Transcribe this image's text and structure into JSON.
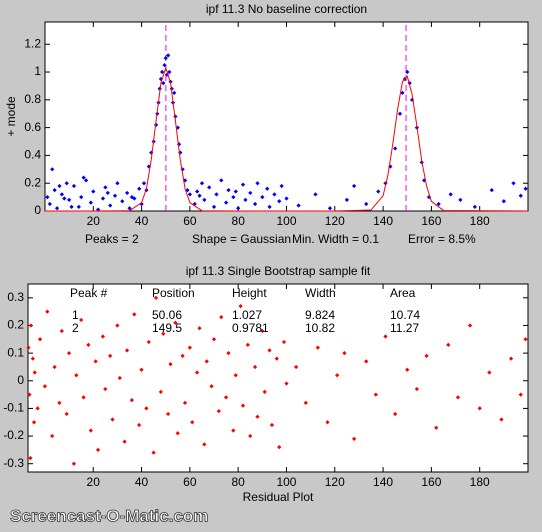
{
  "chart_data": [
    {
      "type": "scatter",
      "title": "ipf 11.3   No baseline correction",
      "ylabel": "+ mode",
      "xlim": [
        0,
        200
      ],
      "ylim": [
        0,
        1.36
      ],
      "xticks": [
        20,
        40,
        60,
        80,
        100,
        120,
        140,
        160,
        180
      ],
      "yticks": [
        0,
        0.2,
        0.4,
        0.6,
        0.8,
        1,
        1.2
      ],
      "annotations": [
        "Peaks = 2",
        "Shape = Gaussian",
        "Min. Width = 0.1",
        "Error = 8.5%"
      ],
      "peak_line_color": "#ff00ff",
      "series": [
        {
          "color": "#0000ff",
          "x": [
            2,
            4,
            5,
            7,
            9,
            10,
            12,
            14,
            15,
            17,
            19,
            20,
            22,
            24,
            25,
            27,
            29,
            30,
            32,
            34,
            35,
            37,
            39,
            40,
            1,
            6,
            11,
            16,
            3,
            8,
            26,
            36,
            41,
            42,
            43,
            44,
            45,
            46,
            46.5,
            47,
            47.5,
            48,
            48.5,
            49,
            49.5,
            50,
            50.5,
            51,
            51.5,
            52,
            52.5,
            53,
            53.5,
            54,
            55,
            55.5,
            56,
            57,
            58,
            59,
            60,
            62,
            63,
            65,
            66,
            68,
            70,
            71,
            73,
            75,
            76,
            78,
            80,
            82,
            83,
            85,
            87,
            88,
            90,
            92,
            93,
            95,
            97,
            98,
            100,
            64,
            79,
            105,
            112,
            118,
            125,
            128,
            133,
            138,
            141,
            143,
            145,
            147,
            148,
            149,
            150,
            151,
            152,
            154,
            156,
            157,
            159,
            163,
            168,
            172,
            178,
            185,
            190,
            194,
            197,
            199
          ],
          "values": [
            0.05,
            0.15,
            0.02,
            0.12,
            0.2,
            0.08,
            0.18,
            0.03,
            0.1,
            0.22,
            0.06,
            0.14,
            0.01,
            0.09,
            0.17,
            0.04,
            0.11,
            0.2,
            0.07,
            0.13,
            0.02,
            0.09,
            0.16,
            0.05,
            0.1,
            0.18,
            0.03,
            0.24,
            0.3,
            0.09,
            0.13,
            0.1,
            0.2,
            0.15,
            0.32,
            0.42,
            0.5,
            0.62,
            0.7,
            0.78,
            0.88,
            0.95,
            1.0,
            0.92,
            1.05,
            1.1,
            0.98,
            1.12,
            1.0,
            0.93,
            0.88,
            0.78,
            0.85,
            0.68,
            0.6,
            0.48,
            0.42,
            0.3,
            0.22,
            0.15,
            0.12,
            0.05,
            0.14,
            0.2,
            0.08,
            0.17,
            0.03,
            0.12,
            0.22,
            0.06,
            0.15,
            0.1,
            0.02,
            0.19,
            0.08,
            0.13,
            0.05,
            0.2,
            0.1,
            0.16,
            0.03,
            0.12,
            0.07,
            0.18,
            0.09,
            0.11,
            0.14,
            0.04,
            0.12,
            0.02,
            0.08,
            0.18,
            0.05,
            0.14,
            0.2,
            0.32,
            0.45,
            0.7,
            0.85,
            0.95,
            1.0,
            0.92,
            0.8,
            0.6,
            0.35,
            0.22,
            0.1,
            0.05,
            0.12,
            0.08,
            0.03,
            0.15,
            0.07,
            0.2,
            0.11,
            0.16
          ]
        },
        {
          "type": "line",
          "color": "#ff0000",
          "x": [
            0,
            20,
            35,
            40,
            42,
            44,
            46,
            48,
            50,
            52,
            54,
            56,
            58,
            60,
            65,
            80,
            120,
            135,
            140,
            142,
            144,
            146,
            148,
            150,
            152,
            154,
            156,
            158,
            160,
            165,
            200
          ],
          "values": [
            0,
            0,
            0.002,
            0.06,
            0.16,
            0.37,
            0.65,
            0.92,
            1.03,
            0.92,
            0.65,
            0.37,
            0.16,
            0.06,
            0.002,
            0,
            0,
            0.007,
            0.11,
            0.26,
            0.48,
            0.73,
            0.93,
            0.97,
            0.84,
            0.61,
            0.36,
            0.18,
            0.07,
            0.004,
            0
          ]
        }
      ]
    },
    {
      "type": "scatter",
      "title": "ipf 11.3  Single Bootstrap sample fit",
      "xlabel": "Residual Plot",
      "xlim": [
        -7,
        200
      ],
      "ylim": [
        -0.33,
        0.35
      ],
      "xticks": [
        20,
        40,
        60,
        80,
        100,
        120,
        140,
        160,
        180
      ],
      "yticks": [
        -0.3,
        -0.2,
        -0.1,
        0,
        0.1,
        0.2,
        0.3
      ],
      "table": {
        "headers": [
          "Peak #",
          "Position",
          "Height",
          "Width",
          "Area"
        ],
        "rows": [
          [
            1,
            50.06,
            1.027,
            9.824,
            10.74
          ],
          [
            2,
            149.5,
            0.9781,
            10.82,
            11.27
          ]
        ]
      },
      "series": [
        {
          "color": "#ff0000",
          "x": [
            -6.8,
            -6.4,
            -5.8,
            -4.5,
            -4.2,
            -6,
            -5,
            -3,
            -2,
            0,
            1,
            3,
            4,
            6,
            7,
            9,
            10,
            12,
            13,
            15,
            16,
            18,
            19,
            21,
            22,
            24,
            25,
            27,
            28,
            30,
            31,
            33,
            34,
            36,
            37,
            39,
            40,
            42,
            43,
            45,
            46,
            48,
            49,
            51,
            52,
            54,
            55,
            57,
            58,
            60,
            61,
            63,
            64,
            66,
            67,
            69,
            70,
            72,
            73,
            75,
            76,
            78,
            79,
            81,
            82,
            84,
            85,
            87,
            88,
            90,
            91,
            93,
            94,
            96,
            97,
            99,
            100,
            104,
            108,
            113,
            117,
            121,
            124,
            128,
            133,
            137,
            141,
            145,
            150,
            154,
            158,
            162,
            167,
            171,
            176,
            180,
            184,
            189,
            193,
            197,
            199
          ],
          "values": [
            0.12,
            -0.05,
            0.2,
            -0.15,
            0.03,
            -0.28,
            0.08,
            -0.1,
            0.15,
            -0.02,
            0.25,
            -0.2,
            0.05,
            -0.08,
            0.18,
            -0.12,
            0.1,
            -0.3,
            0.02,
            0.22,
            -0.06,
            0.13,
            -0.18,
            0.07,
            -0.25,
            0.16,
            -0.03,
            0.09,
            -0.14,
            0.2,
            0.01,
            -0.22,
            0.11,
            -0.07,
            0.24,
            -0.16,
            0.04,
            -0.1,
            0.14,
            -0.26,
            0.3,
            -0.04,
            0.17,
            -0.12,
            0.06,
            0.21,
            -0.19,
            0.09,
            -0.08,
            0.12,
            -0.15,
            0.03,
            0.19,
            -0.23,
            0.07,
            -0.02,
            0.15,
            -0.11,
            0.23,
            -0.06,
            0.1,
            -0.18,
            0.02,
            0.27,
            -0.09,
            0.13,
            -0.2,
            0.05,
            -0.13,
            0.18,
            -0.04,
            0.11,
            -0.16,
            0.08,
            -0.24,
            0.14,
            -0.01,
            0.05,
            -0.08,
            0.12,
            -0.15,
            0.02,
            0.1,
            -0.21,
            0.07,
            -0.05,
            0.16,
            -0.12,
            0.04,
            -0.03,
            0.09,
            -0.17,
            0.13,
            -0.06,
            0.2,
            -0.1,
            0.03,
            -0.14,
            0.08,
            -0.05,
            0.15
          ]
        }
      ]
    }
  ],
  "watermark": "Screencast-O-Matic.com"
}
